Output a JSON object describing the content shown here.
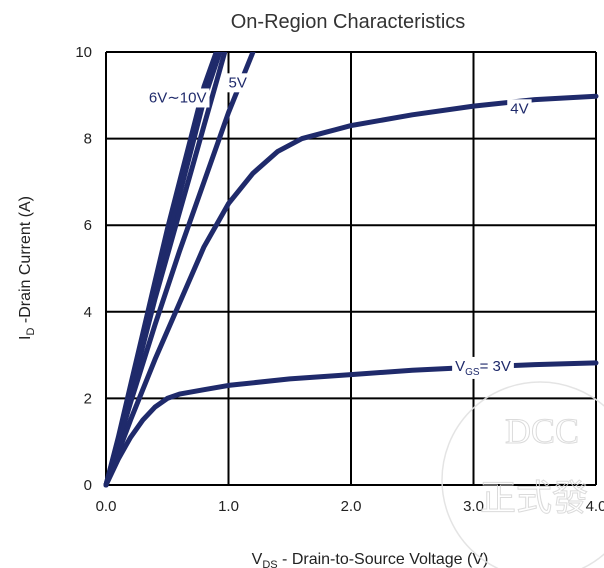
{
  "chart_data": {
    "type": "line",
    "title": "On-Region Characteristics",
    "xlabel": "V_DS - Drain-to-Source Voltage (V)",
    "xlabel_main": "V",
    "xlabel_sub": "DS",
    "xlabel_rest": " - Drain-to-Source Voltage (V)",
    "ylabel": "I_D -Drain Current (A)",
    "ylabel_main": "I",
    "ylabel_sub": "D",
    "ylabel_rest": " -Drain Current (A)",
    "xlim": [
      0,
      4.0
    ],
    "ylim": [
      0,
      10
    ],
    "xticks": [
      "0.0",
      "1.0",
      "2.0",
      "3.0",
      "4.0"
    ],
    "yticks": [
      "0",
      "2",
      "4",
      "6",
      "8",
      "10"
    ],
    "grid": true,
    "line_color": "#1f2a6b",
    "series": [
      {
        "name": "6V~10V",
        "x": [
          0,
          0.1,
          0.2,
          0.3,
          0.4,
          0.5,
          0.6,
          0.7,
          0.8,
          0.9
        ],
        "y": [
          0,
          1.1,
          2.3,
          3.5,
          4.7,
          5.9,
          7.0,
          8.1,
          9.2,
          10.0
        ]
      },
      {
        "name": "6V~10V",
        "x": [
          0,
          0.1,
          0.2,
          0.3,
          0.4,
          0.5,
          0.6,
          0.7,
          0.8,
          0.93
        ],
        "y": [
          0,
          1.05,
          2.2,
          3.4,
          4.5,
          5.6,
          6.7,
          7.8,
          8.9,
          10.0
        ]
      },
      {
        "name": "6V~10V",
        "x": [
          0,
          0.1,
          0.2,
          0.3,
          0.4,
          0.5,
          0.6,
          0.7,
          0.8,
          0.9,
          0.97
        ],
        "y": [
          0,
          1.0,
          2.1,
          3.2,
          4.3,
          5.3,
          6.3,
          7.3,
          8.3,
          9.3,
          10.0
        ]
      },
      {
        "name": "5V",
        "x": [
          0,
          0.1,
          0.2,
          0.4,
          0.6,
          0.8,
          1.0,
          1.2
        ],
        "y": [
          0,
          0.95,
          1.9,
          3.7,
          5.4,
          7.0,
          8.6,
          10.0
        ]
      },
      {
        "name": "4V",
        "x": [
          0,
          0.2,
          0.4,
          0.6,
          0.8,
          1.0,
          1.2,
          1.4,
          1.6,
          1.8,
          2.0,
          2.5,
          3.0,
          3.5,
          4.0
        ],
        "y": [
          0,
          1.5,
          2.9,
          4.2,
          5.5,
          6.5,
          7.2,
          7.7,
          8.0,
          8.15,
          8.3,
          8.55,
          8.75,
          8.9,
          8.98
        ]
      },
      {
        "name": "VGS = 3V",
        "x": [
          0,
          0.1,
          0.2,
          0.3,
          0.4,
          0.5,
          0.6,
          0.8,
          1.0,
          1.5,
          2.0,
          2.5,
          3.0,
          3.5,
          4.0
        ],
        "y": [
          0,
          0.6,
          1.1,
          1.5,
          1.8,
          2.0,
          2.1,
          2.2,
          2.3,
          2.45,
          2.55,
          2.65,
          2.72,
          2.78,
          2.82
        ]
      }
    ],
    "annotations": [
      {
        "text": "6V∼10V",
        "x": 0.35,
        "y": 8.95
      },
      {
        "text": "5V",
        "x": 1.0,
        "y": 9.3
      },
      {
        "text": "4V",
        "x": 3.3,
        "y": 8.7
      },
      {
        "text_main": "V",
        "text_sub": "GS",
        "text_rest": "= 3V",
        "x": 2.85,
        "y": 2.75
      }
    ]
  },
  "watermark": {
    "line1": "DCC",
    "line2": "正式發"
  }
}
